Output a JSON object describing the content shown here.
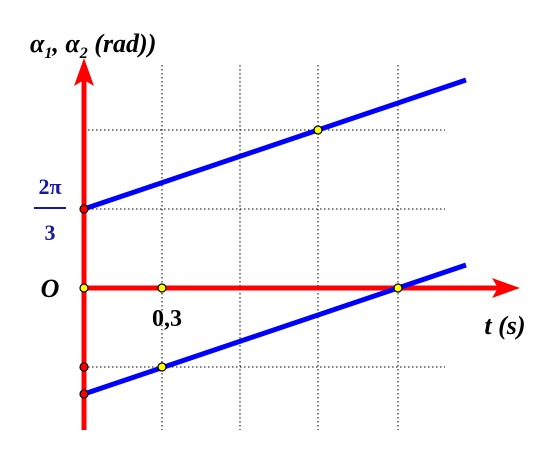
{
  "axis_label_y": {
    "a": "α",
    "a_sub": "1",
    "sep": ", α",
    "b_sub": "2",
    "unit": " (rad))"
  },
  "fraction": {
    "numerator": "2π",
    "denominator": "3"
  },
  "origin_label": "O",
  "tick_label_x": "0,3",
  "axis_label_x": "t (s)"
}
